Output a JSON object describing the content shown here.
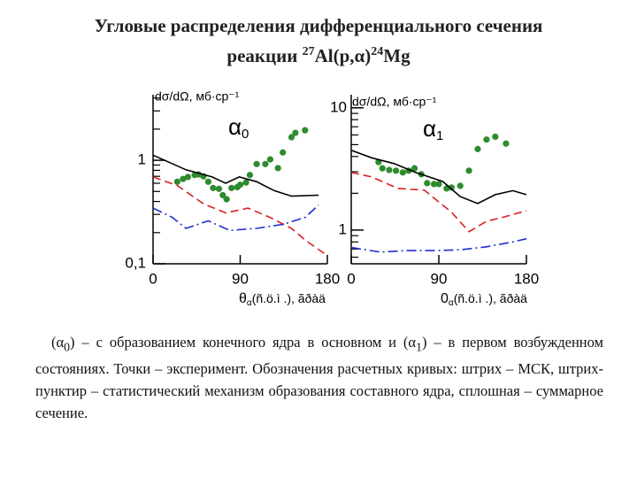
{
  "title": {
    "line1": "Угловые распределения дифференциального сечения",
    "line2": {
      "prefix": "реакции ",
      "a_mass": "27",
      "reaction_left": "Al(p,",
      "particle": "α",
      "reaction_right": ")",
      "b_mass": "24",
      "element": "Mg"
    }
  },
  "chart_data": [
    {
      "type": "line",
      "ylabel": "dσ/dΩ, мб·ср⁻¹",
      "xlabel": {
        "symbol": "θ",
        "sub": "α",
        "rest": "(ñ.ö.ì .), ãðàä"
      },
      "annotation": {
        "text": "α",
        "sub": "0"
      },
      "xlim": [
        0,
        180
      ],
      "xticks": [
        0,
        90,
        180
      ],
      "ylim": [
        0.1,
        4.3
      ],
      "log_y": true,
      "yticks": [
        {
          "value": 0.1,
          "label": "0,1"
        },
        1
      ],
      "yticks_minor": [
        0.2,
        0.3,
        0.4,
        0.5,
        0.6,
        0.7,
        0.8,
        0.9,
        2,
        3,
        4
      ],
      "series": [
        {
          "style": "points",
          "color": "#2e8b2e",
          "x": [
            25,
            31,
            36,
            43,
            47,
            52,
            57,
            62,
            68,
            72,
            76,
            81,
            87,
            90,
            96,
            100,
            107,
            116,
            121,
            129,
            134,
            143,
            147,
            157
          ],
          "values": [
            0.62,
            0.66,
            0.69,
            0.72,
            0.73,
            0.7,
            0.62,
            0.54,
            0.53,
            0.46,
            0.42,
            0.54,
            0.55,
            0.58,
            0.61,
            0.72,
            0.92,
            0.92,
            1.02,
            0.84,
            1.19,
            1.67,
            1.84,
            1.95
          ]
        },
        {
          "style": "solid",
          "color": "#000000",
          "x": [
            0,
            34,
            61,
            75,
            89,
            107,
            125,
            143,
            171
          ],
          "values": [
            1.12,
            0.81,
            0.69,
            0.6,
            0.69,
            0.62,
            0.51,
            0.45,
            0.46
          ]
        },
        {
          "style": "dashed",
          "color": "#dd1f1f",
          "x": [
            0,
            25,
            52,
            75,
            98,
            121,
            143,
            157,
            180
          ],
          "values": [
            0.69,
            0.57,
            0.38,
            0.31,
            0.345,
            0.28,
            0.22,
            0.17,
            0.12
          ]
        },
        {
          "style": "dashdot",
          "color": "#1f2fd0",
          "x": [
            0,
            20,
            34,
            57,
            79,
            107,
            134,
            157,
            171
          ],
          "values": [
            0.345,
            0.28,
            0.22,
            0.26,
            0.21,
            0.22,
            0.24,
            0.28,
            0.37
          ]
        }
      ]
    },
    {
      "type": "line",
      "ylabel": "dσ/dΩ, мб·ср⁻¹",
      "xlabel": {
        "symbol": "0",
        "sub": "α",
        "rest": "(ñ.ö.ì .), ãðàä"
      },
      "annotation": {
        "text": "α",
        "sub": "1"
      },
      "xlim": [
        0,
        180
      ],
      "xticks": [
        0,
        90,
        180
      ],
      "ylim": [
        0.53,
        12.8
      ],
      "log_y": true,
      "yticks": [
        1,
        10
      ],
      "yticks_minor": [
        0.6,
        0.7,
        0.8,
        0.9,
        2,
        3,
        4,
        5,
        6,
        7,
        8,
        9
      ],
      "series": [
        {
          "style": "points",
          "color": "#2e8b2e",
          "x": [
            28,
            32,
            39,
            46,
            53,
            59,
            65,
            72,
            78,
            85,
            90,
            98,
            103,
            112,
            121,
            130,
            139,
            148,
            159
          ],
          "values": [
            3.6,
            3.2,
            3.1,
            3.06,
            2.96,
            3.06,
            3.2,
            2.86,
            2.42,
            2.38,
            2.38,
            2.19,
            2.23,
            2.3,
            3.06,
            4.6,
            5.5,
            5.8,
            5.1
          ]
        },
        {
          "style": "solid",
          "color": "#000000",
          "x": [
            0,
            21,
            44,
            66,
            94,
            112,
            130,
            148,
            166,
            180
          ],
          "values": [
            4.5,
            3.9,
            3.5,
            2.96,
            2.5,
            1.88,
            1.65,
            1.95,
            2.1,
            1.95
          ]
        },
        {
          "style": "dashed",
          "color": "#dd1f1f",
          "x": [
            0,
            21,
            48,
            75,
            103,
            121,
            139,
            157,
            180
          ],
          "values": [
            2.96,
            2.72,
            2.19,
            2.12,
            1.4,
            0.97,
            1.18,
            1.28,
            1.44
          ]
        },
        {
          "style": "dashdot",
          "color": "#1f2fd0",
          "x": [
            0,
            30,
            57,
            85,
            112,
            139,
            166,
            180
          ],
          "values": [
            0.72,
            0.66,
            0.68,
            0.68,
            0.69,
            0.73,
            0.8,
            0.85
          ]
        }
      ]
    }
  ],
  "caption": [
    "(α",
    "0",
    ") – с образованием конечного ядра в основном и (α",
    "1",
    ") – в первом возбужденном состояниях. Точки – эксперимент. Обозначения расчетных кривых: штрих – МСК, штрих-пунктир – статистический механизм образования составного ядра, сплошная – суммарное сечение."
  ]
}
